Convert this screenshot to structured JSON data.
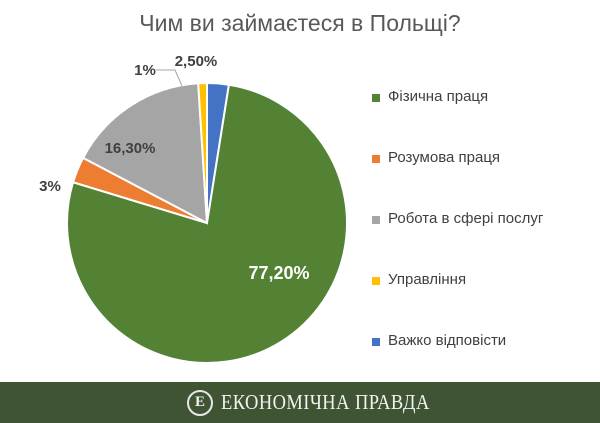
{
  "chart_data": {
    "type": "pie",
    "title": "Чим ви займаєтеся в Польщі?",
    "categories": [
      "Фізична праця",
      "Розумова праця",
      "Робота в сфері послуг",
      "Управління",
      "Важко відповісти"
    ],
    "values": [
      77.2,
      3,
      16.3,
      1,
      2.5
    ],
    "data_labels": [
      "77,20%",
      "3%",
      "16,30%",
      "1%",
      "2,50%"
    ],
    "colors": [
      "#548235",
      "#ED7D31",
      "#A5A5A5",
      "#FFC000",
      "#4472C4"
    ],
    "start_angle": "12 o'clock",
    "direction": "clockwise starting with Важко відповісти, then Фізична праця",
    "legend_position": "right"
  },
  "footer": {
    "brand": "ЕКОНОМІЧНА ПРАВДА",
    "logo_letter": "Е",
    "background": "#3f5433"
  }
}
